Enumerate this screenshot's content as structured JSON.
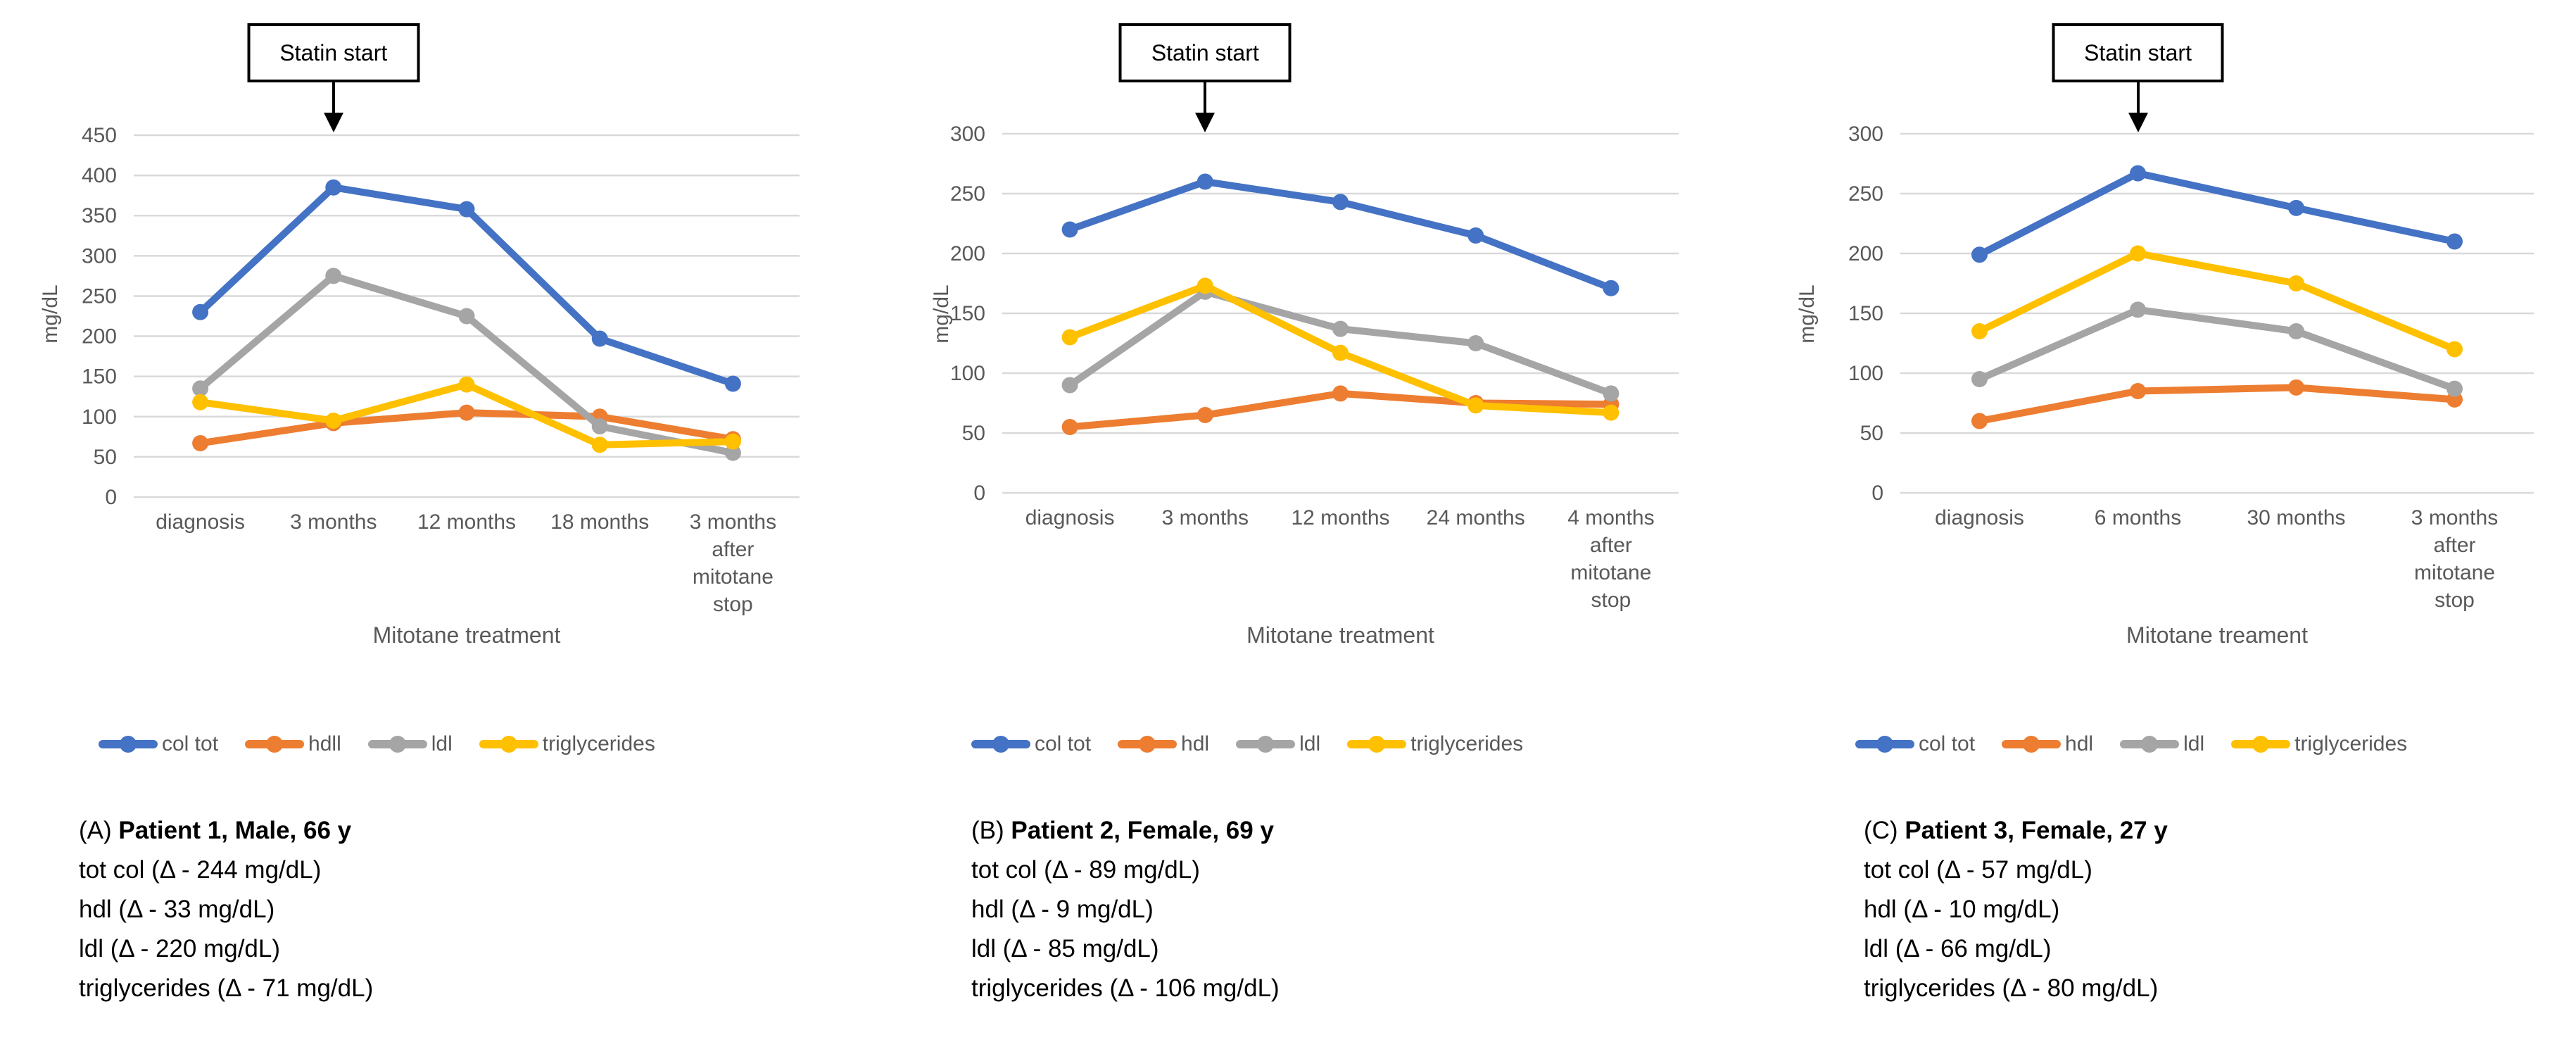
{
  "colors": {
    "col_tot": "#4472C4",
    "hdl": "#ED7D31",
    "ldl": "#A5A5A5",
    "triglycerides": "#FFC000",
    "gridline": "#D9D9D9",
    "axis_text": "#595959",
    "annotation_text": "#000000"
  },
  "chart_data": [
    {
      "type": "line",
      "annotation": "Statin start",
      "annotation_category_index": 1,
      "ylabel": "mg/dL",
      "xlabel": "Mitotane treatment",
      "ylim": [
        0,
        450
      ],
      "yticks": [
        0,
        50,
        100,
        150,
        200,
        250,
        300,
        350,
        400,
        450
      ],
      "grid": true,
      "legend_position": "bottom",
      "categories": [
        "diagnosis",
        "3 months",
        "12 months",
        "18 months",
        "3 months\nafter\nmitotane\nstop"
      ],
      "series": [
        {
          "name": "col tot",
          "color": "#4472C4",
          "values": [
            230,
            385,
            358,
            197,
            141
          ]
        },
        {
          "name": "hdll",
          "color": "#ED7D31",
          "values": [
            67,
            92,
            105,
            100,
            72
          ]
        },
        {
          "name": "ldl",
          "color": "#A5A5A5",
          "values": [
            135,
            275,
            225,
            88,
            55
          ]
        },
        {
          "name": "triglycerides",
          "color": "#FFC000",
          "values": [
            118,
            95,
            140,
            65,
            69
          ]
        }
      ],
      "caption_prefix": "(A) ",
      "caption_title": "Patient 1, Male, 66 y",
      "caption_lines": [
        "tot col (Δ - 244 mg/dL)",
        "hdl (Δ - 33 mg/dL)",
        "ldl (Δ - 220 mg/dL)",
        "triglycerides (Δ - 71 mg/dL)"
      ]
    },
    {
      "type": "line",
      "annotation": "Statin start",
      "annotation_category_index": 1,
      "ylabel": "mg/dL",
      "xlabel": "Mitotane treatment",
      "ylim": [
        0,
        300
      ],
      "yticks": [
        0,
        50,
        100,
        150,
        200,
        250,
        300
      ],
      "grid": true,
      "legend_position": "bottom",
      "categories": [
        "diagnosis",
        "3 months",
        "12 months",
        "24 months",
        "4 months\nafter\nmitotane\nstop"
      ],
      "series": [
        {
          "name": "col tot",
          "color": "#4472C4",
          "values": [
            220,
            260,
            243,
            215,
            171
          ]
        },
        {
          "name": "hdl",
          "color": "#ED7D31",
          "values": [
            55,
            65,
            83,
            75,
            74
          ]
        },
        {
          "name": "ldl",
          "color": "#A5A5A5",
          "values": [
            90,
            168,
            137,
            125,
            83
          ]
        },
        {
          "name": "triglycerides",
          "color": "#FFC000",
          "values": [
            130,
            173,
            117,
            73,
            67
          ]
        }
      ],
      "caption_prefix": "(B) ",
      "caption_title": "Patient 2, Female, 69 y",
      "caption_lines": [
        "tot col (Δ - 89 mg/dL)",
        "hdl (Δ - 9 mg/dL)",
        "ldl (Δ - 85 mg/dL)",
        "triglycerides (Δ - 106 mg/dL)"
      ]
    },
    {
      "type": "line",
      "annotation": "Statin start",
      "annotation_category_index": 1,
      "ylabel": "mg/dL",
      "xlabel": "Mitotane treament",
      "ylim": [
        0,
        300
      ],
      "yticks": [
        0,
        50,
        100,
        150,
        200,
        250,
        300
      ],
      "grid": true,
      "legend_position": "bottom",
      "categories": [
        "diagnosis",
        "6 months",
        "30 months",
        "3 months\nafter\nmitotane\nstop"
      ],
      "series": [
        {
          "name": "col tot",
          "color": "#4472C4",
          "values": [
            199,
            267,
            238,
            210
          ]
        },
        {
          "name": "hdl",
          "color": "#ED7D31",
          "values": [
            60,
            85,
            88,
            78
          ]
        },
        {
          "name": "ldl",
          "color": "#A5A5A5",
          "values": [
            95,
            153,
            135,
            87
          ]
        },
        {
          "name": "triglycerides",
          "color": "#FFC000",
          "values": [
            135,
            200,
            175,
            120
          ]
        }
      ],
      "caption_prefix": "(C) ",
      "caption_title": "Patient 3, Female, 27 y",
      "caption_lines": [
        "tot col (Δ - 57 mg/dL)",
        "hdl (Δ - 10 mg/dL)",
        "ldl (Δ - 66 mg/dL)",
        "triglycerides (Δ - 80 mg/dL)"
      ]
    }
  ]
}
